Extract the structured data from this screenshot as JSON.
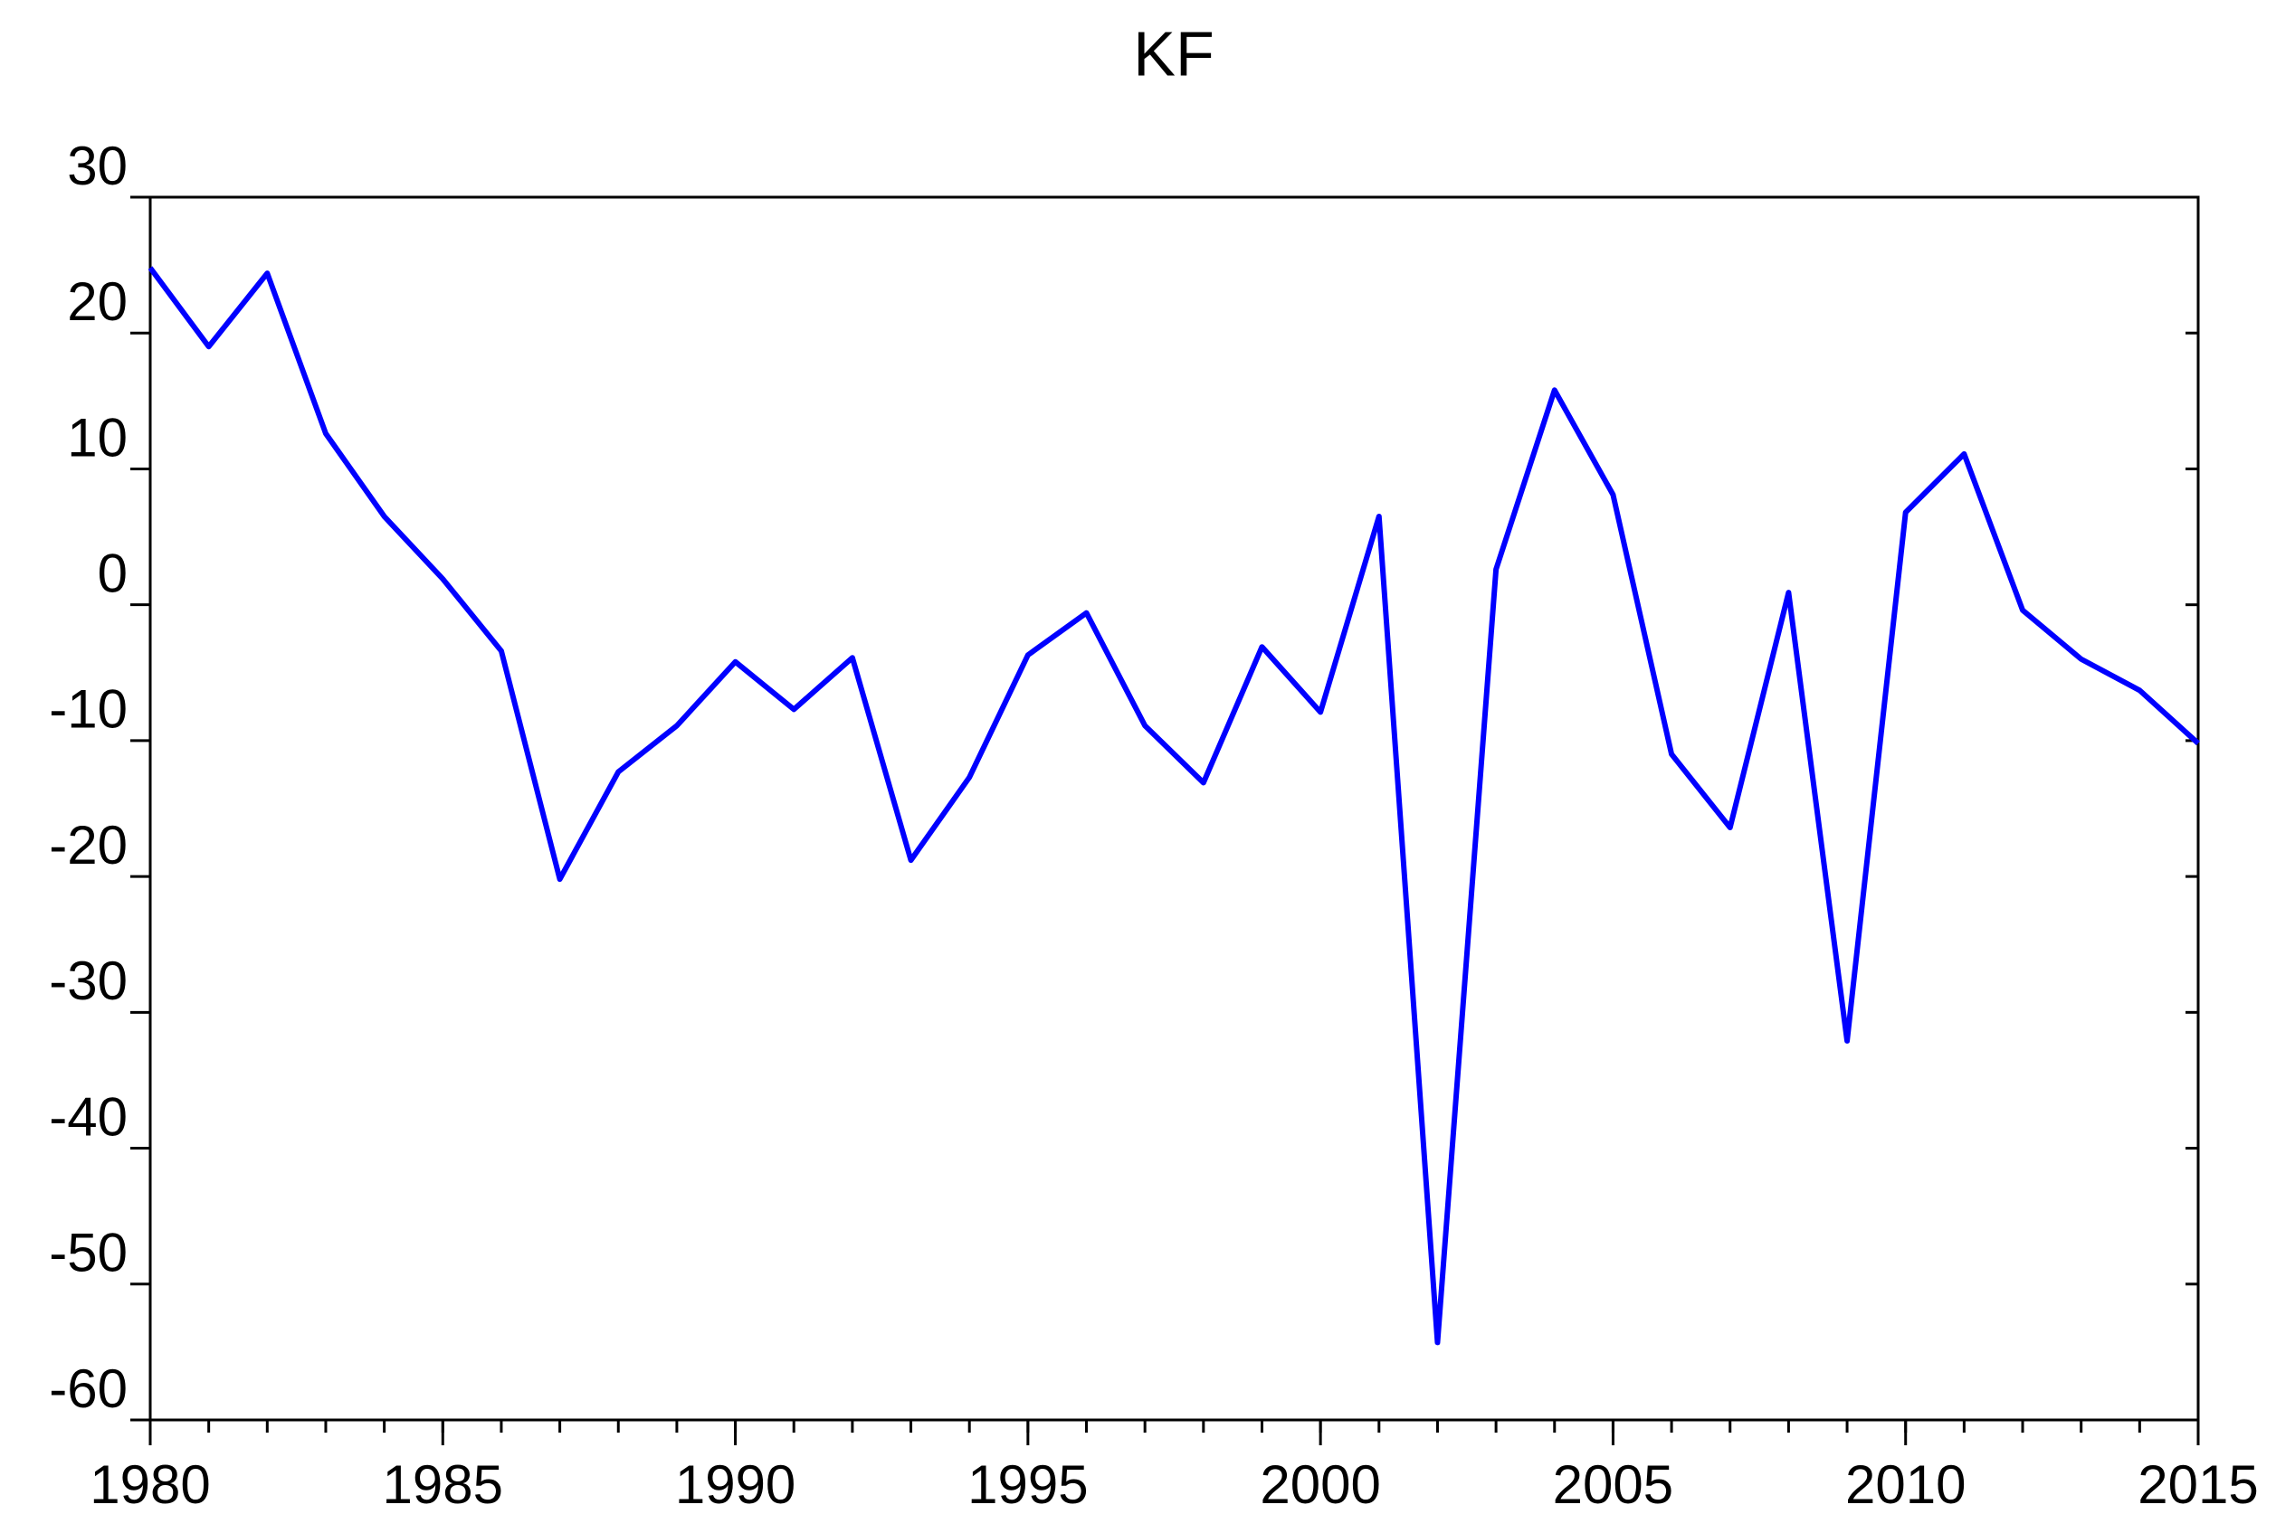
{
  "chart_data": {
    "type": "line",
    "title": "KF",
    "x": [
      1980,
      1981,
      1982,
      1983,
      1984,
      1985,
      1986,
      1987,
      1988,
      1989,
      1990,
      1991,
      1992,
      1993,
      1994,
      1995,
      1996,
      1997,
      1998,
      1999,
      2000,
      2001,
      2002,
      2003,
      2004,
      2005,
      2006,
      2007,
      2008,
      2009,
      2010,
      2011,
      2012,
      2013,
      2014,
      2015
    ],
    "values": [
      24.8,
      19.0,
      24.4,
      12.6,
      6.5,
      1.9,
      -3.4,
      -20.2,
      -12.3,
      -8.9,
      -4.2,
      -7.7,
      -3.9,
      -18.8,
      -12.7,
      -3.7,
      -0.6,
      -8.9,
      -13.1,
      -3.1,
      -7.9,
      6.5,
      -54.3,
      2.6,
      15.8,
      8.1,
      -11.0,
      -16.4,
      0.9,
      -32.1,
      6.8,
      11.1,
      -0.4,
      -4.0,
      -6.3,
      -10.2
    ],
    "color": "#0000ff",
    "xlim": [
      1980,
      2015
    ],
    "xticks": [
      1980,
      1985,
      1990,
      1995,
      2000,
      2005,
      2010,
      2015
    ],
    "ylim": [
      -60,
      30
    ],
    "yticks": [
      -60,
      -50,
      -40,
      -30,
      -20,
      -10,
      0,
      10,
      20,
      30
    ],
    "grid": false
  }
}
